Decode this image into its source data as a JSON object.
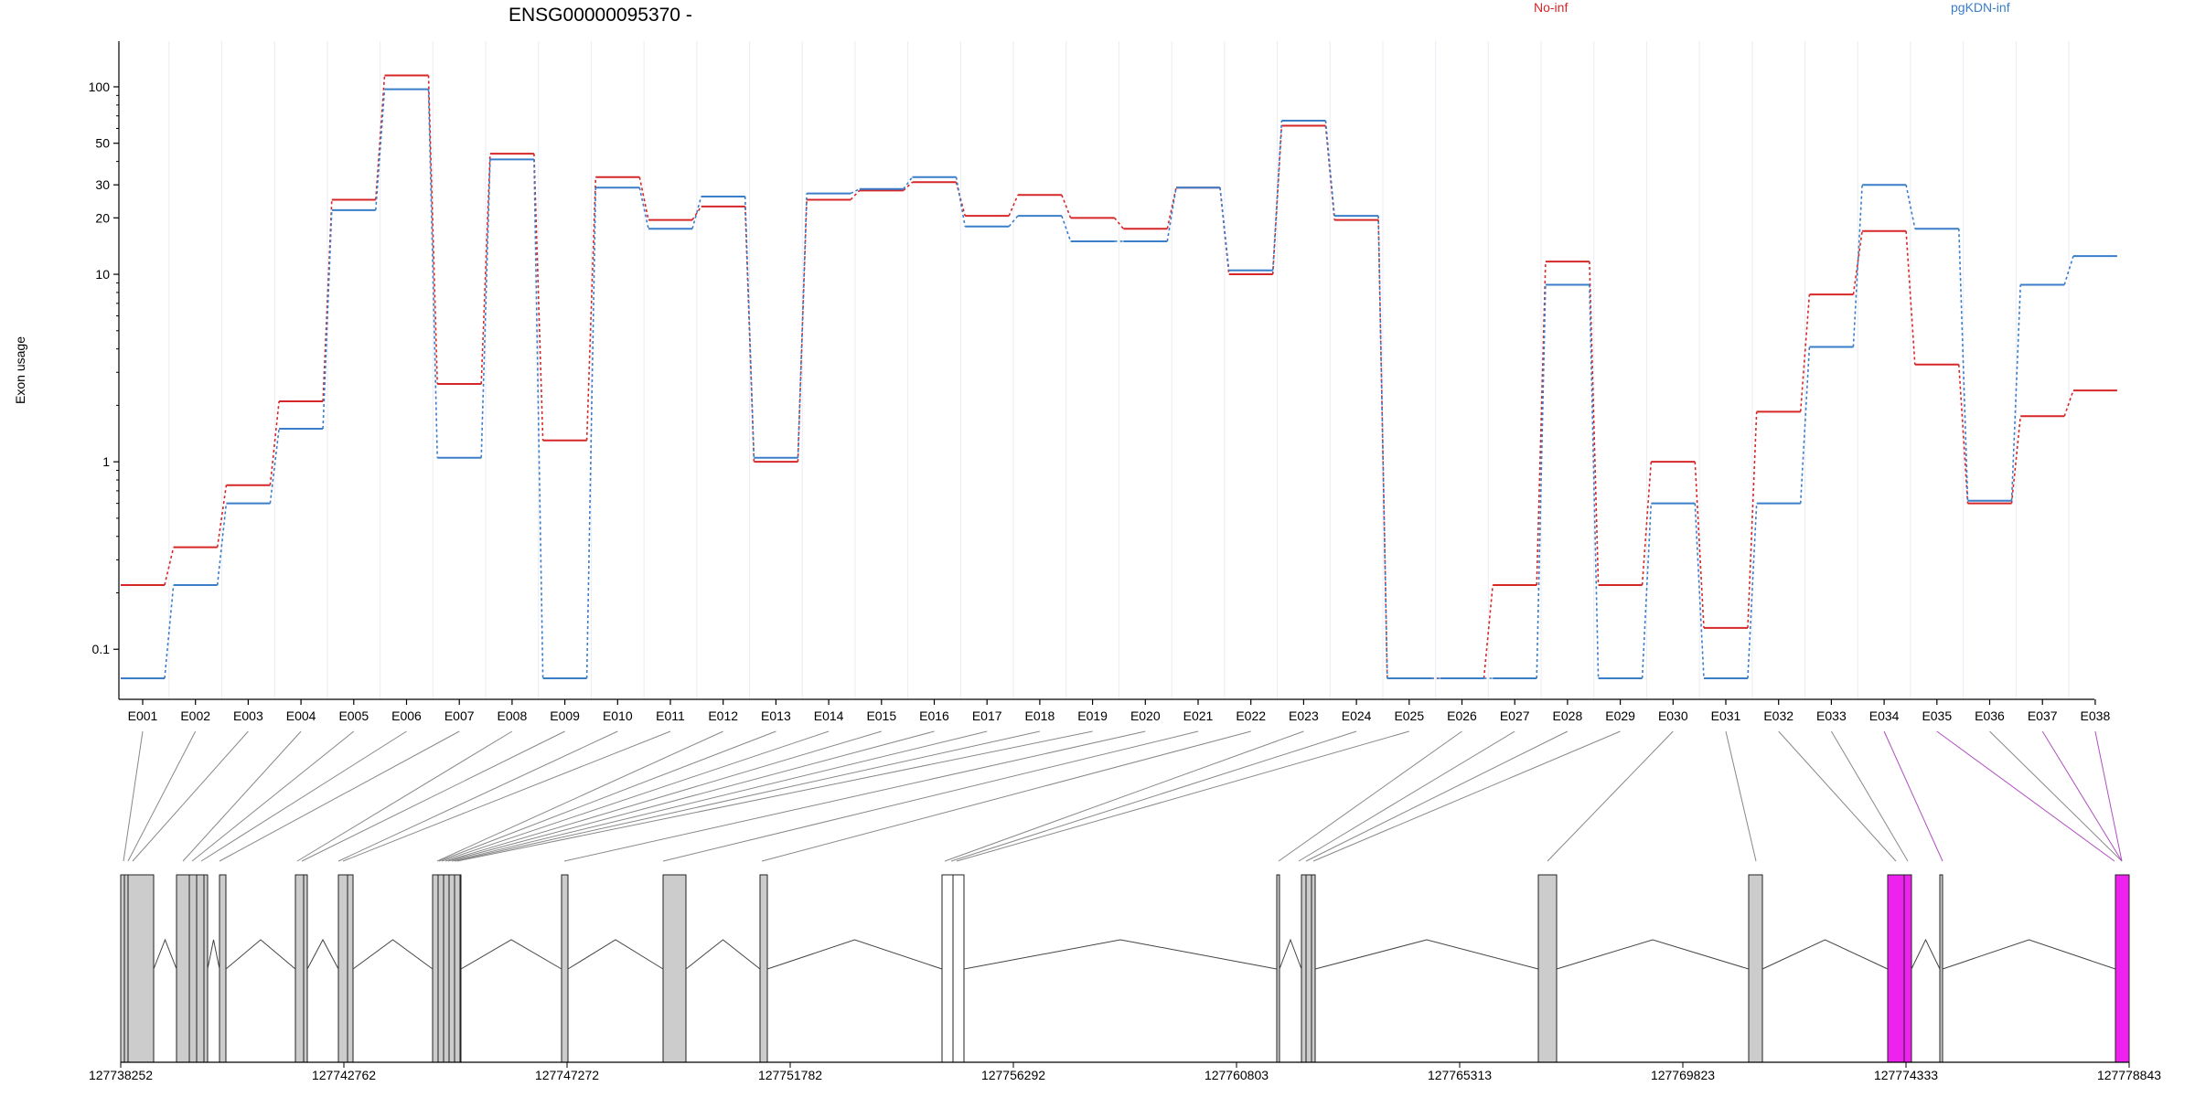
{
  "gene": {
    "title": "ENSG00000095370 -"
  },
  "colors": {
    "no_inf": "#d62728",
    "pgkdn_inf": "#3a7dc9",
    "exon_normal": "#cccccc",
    "exon_highlight": "#ee22ee",
    "connector_normal": "#888888",
    "connector_highlight": "#b050c0"
  },
  "chart_data": {
    "type": "line",
    "ylabel": "Exon usage",
    "yscale": "log",
    "ylim": [
      0.07,
      140
    ],
    "yticks": [
      {
        "value": 0.1,
        "label": "0.1"
      },
      {
        "value": 1,
        "label": "1"
      },
      {
        "value": 10,
        "label": "10"
      },
      {
        "value": 20,
        "label": "20"
      },
      {
        "value": 30,
        "label": "30"
      },
      {
        "value": 50,
        "label": "50"
      },
      {
        "value": 100,
        "label": "100"
      }
    ],
    "categories": [
      "E001",
      "E002",
      "E003",
      "E004",
      "E005",
      "E006",
      "E007",
      "E008",
      "E009",
      "E010",
      "E011",
      "E012",
      "E013",
      "E014",
      "E015",
      "E016",
      "E017",
      "E018",
      "E019",
      "E020",
      "E021",
      "E022",
      "E023",
      "E024",
      "E025",
      "E026",
      "E027",
      "E028",
      "E029",
      "E030",
      "E031",
      "E032",
      "E033",
      "E034",
      "E035",
      "E036",
      "E037",
      "E038"
    ],
    "series": [
      {
        "name": "No-inf",
        "color": "#d62728",
        "values": [
          0.22,
          0.35,
          0.75,
          2.1,
          25,
          115,
          2.6,
          44,
          1.3,
          33,
          19.5,
          23,
          1.0,
          25,
          28,
          31,
          20.5,
          26.5,
          20,
          17.5,
          29,
          10,
          62,
          19.5,
          0.07,
          0.07,
          0.22,
          11.7,
          0.22,
          1.0,
          0.13,
          1.85,
          7.8,
          17,
          3.3,
          0.6,
          1.75,
          2.4
        ]
      },
      {
        "name": "pgKDN-inf",
        "color": "#3a7dc9",
        "values": [
          0.07,
          0.22,
          0.6,
          1.5,
          22,
          97,
          1.05,
          41,
          0.07,
          29,
          17.5,
          26,
          1.05,
          27,
          28.5,
          33,
          18,
          20.5,
          15,
          15,
          29,
          10.5,
          66,
          20.5,
          0.07,
          0.07,
          0.07,
          8.8,
          0.07,
          0.6,
          0.07,
          0.6,
          4.1,
          30,
          17.5,
          0.62,
          8.8,
          12.5
        ]
      }
    ]
  },
  "gene_model": {
    "coords": [
      "127738252",
      "127742762",
      "127747272",
      "127751782",
      "127756292",
      "127760803",
      "127765313",
      "127769823",
      "127774333",
      "127778843"
    ]
  },
  "legend": [
    {
      "label": "No-inf",
      "color": "#d62728"
    },
    {
      "label": "pgKDN-inf",
      "color": "#3a7dc9"
    }
  ]
}
